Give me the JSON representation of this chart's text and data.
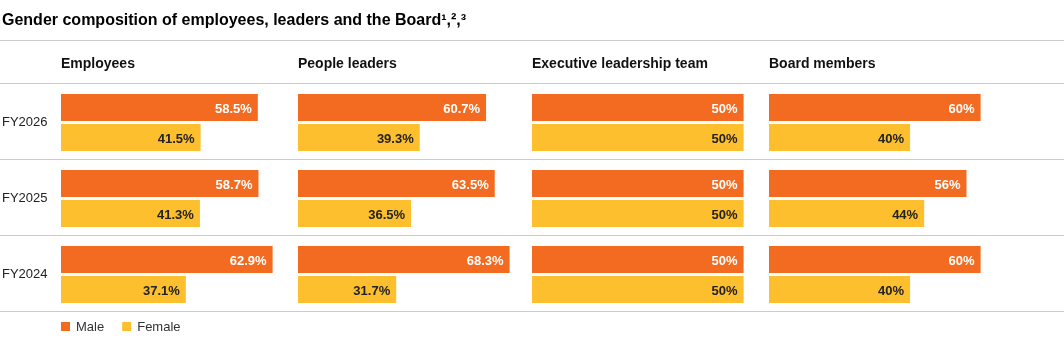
{
  "chart_data": [
    {
      "type": "other",
      "title": "Gender composition of employees, leaders and the Board¹,²,³"
    },
    {
      "type": "bar",
      "orientation": "horizontal",
      "title": "Employees",
      "categories": [
        "FY2026",
        "FY2025",
        "FY2024"
      ],
      "data_labels": true,
      "legend": "bottom",
      "tick_labels": "y",
      "series": [
        {
          "name": "Male",
          "color": "#f26b21",
          "values": [
            58.5,
            58.7,
            62.9
          ],
          "value_labels": [
            "58.5%",
            "58.7%",
            "62.9%"
          ]
        },
        {
          "name": "Female",
          "color": "#fdbf2d",
          "values": [
            41.5,
            41.3,
            37.1
          ],
          "value_labels": [
            "41.5%",
            "41.3%",
            "37.1%"
          ]
        }
      ]
    },
    {
      "type": "bar",
      "orientation": "horizontal",
      "title": "People leaders",
      "categories": [
        null,
        null,
        null
      ],
      "data_labels": true,
      "series": [
        {
          "color": "#f26b21",
          "values": [
            60.7,
            63.5,
            68.3
          ],
          "value_labels": [
            "60.7%",
            "63.5%",
            "68.3%"
          ]
        },
        {
          "color": "#fdbf2d",
          "values": [
            39.3,
            36.5,
            31.7
          ],
          "value_labels": [
            "39.3%",
            "36.5%",
            "31.7%"
          ]
        }
      ]
    },
    {
      "type": "bar",
      "orientation": "horizontal",
      "title": "Executive leadership team",
      "categories": [
        null,
        null,
        null
      ],
      "data_labels": true,
      "series": [
        {
          "color": "#f26b21",
          "values": [
            50,
            50,
            50
          ],
          "value_labels": [
            "50%",
            "50%",
            "50%"
          ]
        },
        {
          "color": "#fdbf2d",
          "values": [
            50,
            50,
            50
          ],
          "value_labels": [
            "50%",
            "50%",
            "50%"
          ]
        }
      ]
    },
    {
      "type": "bar",
      "orientation": "horizontal",
      "title": "Board members",
      "categories": [
        null,
        null,
        null
      ],
      "data_labels": true,
      "series": [
        {
          "color": "#f26b21",
          "values": [
            60,
            56,
            60
          ],
          "value_labels": [
            "60%",
            "56%",
            "60%"
          ]
        },
        {
          "color": "#fdbf2d",
          "values": [
            40,
            44,
            40
          ],
          "value_labels": [
            "40%",
            "44%",
            "40%"
          ]
        }
      ]
    }
  ]
}
